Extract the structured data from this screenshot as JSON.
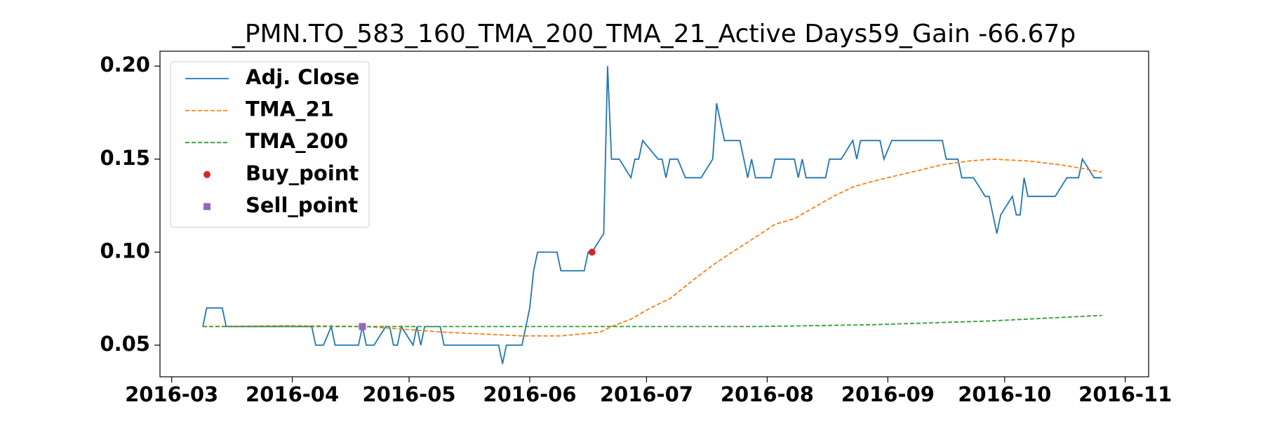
{
  "chart_data": {
    "type": "line",
    "title": "_PMN.TO_583_160_TMA_200_TMA_21_Active Days59_Gain -66.67p",
    "xlim": [
      -3,
      251
    ],
    "xticks": [
      {
        "value": 0,
        "label": "2016-03"
      },
      {
        "value": 31,
        "label": "2016-04"
      },
      {
        "value": 61,
        "label": "2016-05"
      },
      {
        "value": 92,
        "label": "2016-06"
      },
      {
        "value": 122,
        "label": "2016-07"
      },
      {
        "value": 153,
        "label": "2016-08"
      },
      {
        "value": 184,
        "label": "2016-09"
      },
      {
        "value": 214,
        "label": "2016-10"
      },
      {
        "value": 245,
        "label": "2016-11"
      }
    ],
    "ylim": [
      0.033,
      0.208
    ],
    "yticks": [
      0.05,
      {
        "value": 0.1,
        "label": "0.10"
      },
      0.15,
      {
        "value": 0.2,
        "label": "0.20"
      }
    ],
    "legend": "upper left",
    "series": [
      {
        "name": "Adj. Close",
        "color": "#1f77b4",
        "style": "solid",
        "x": [
          8,
          9,
          13,
          14,
          36,
          37,
          39,
          41,
          42,
          48,
          49,
          50,
          52,
          55,
          56,
          57,
          58,
          59,
          62,
          63,
          64,
          65,
          69,
          70,
          84,
          85,
          86,
          90,
          92,
          93,
          94,
          99,
          100,
          106,
          107,
          108,
          111,
          112,
          113,
          115,
          118,
          119,
          120,
          121,
          125,
          126,
          127,
          128,
          130,
          132,
          136,
          139,
          140,
          142,
          146,
          148,
          149,
          150,
          154,
          155,
          160,
          161,
          162,
          163,
          168,
          169,
          172,
          175,
          176,
          177,
          182,
          183,
          185,
          198,
          199,
          202,
          203,
          206,
          209,
          210,
          212,
          213,
          216,
          217,
          218,
          219,
          220,
          227,
          230,
          233,
          234,
          237,
          239
        ],
        "values": [
          0.06,
          0.07,
          0.07,
          0.06,
          0.06,
          0.05,
          0.05,
          0.06,
          0.05,
          0.05,
          0.06,
          0.05,
          0.05,
          0.06,
          0.06,
          0.05,
          0.05,
          0.06,
          0.05,
          0.06,
          0.05,
          0.06,
          0.06,
          0.05,
          0.05,
          0.04,
          0.05,
          0.05,
          0.07,
          0.09,
          0.1,
          0.1,
          0.09,
          0.09,
          0.1,
          0.1,
          0.11,
          0.2,
          0.15,
          0.15,
          0.14,
          0.15,
          0.15,
          0.16,
          0.15,
          0.15,
          0.14,
          0.15,
          0.15,
          0.14,
          0.14,
          0.15,
          0.18,
          0.16,
          0.16,
          0.14,
          0.15,
          0.14,
          0.14,
          0.15,
          0.15,
          0.14,
          0.15,
          0.14,
          0.14,
          0.15,
          0.15,
          0.16,
          0.15,
          0.16,
          0.16,
          0.15,
          0.16,
          0.16,
          0.15,
          0.15,
          0.14,
          0.14,
          0.13,
          0.13,
          0.11,
          0.12,
          0.13,
          0.12,
          0.12,
          0.14,
          0.13,
          0.13,
          0.14,
          0.14,
          0.15,
          0.14,
          0.14
        ]
      },
      {
        "name": "TMA_21",
        "color": "#ff7f0e",
        "style": "dashed",
        "x": [
          8,
          30,
          50,
          70,
          90,
          100,
          110,
          113,
          118,
          123,
          128,
          134,
          139,
          144,
          150,
          155,
          160,
          165,
          170,
          175,
          180,
          186,
          192,
          198,
          205,
          211,
          220,
          228,
          234,
          239
        ],
        "values": [
          0.06,
          0.0605,
          0.06,
          0.057,
          0.055,
          0.055,
          0.057,
          0.06,
          0.064,
          0.07,
          0.075,
          0.085,
          0.093,
          0.1,
          0.108,
          0.115,
          0.118,
          0.124,
          0.13,
          0.135,
          0.138,
          0.141,
          0.144,
          0.147,
          0.149,
          0.15,
          0.149,
          0.147,
          0.145,
          0.143
        ]
      },
      {
        "name": "TMA_200",
        "color": "#2ca02c",
        "style": "dashed",
        "x": [
          8,
          100,
          150,
          180,
          210,
          239
        ],
        "values": [
          0.06,
          0.06,
          0.06,
          0.061,
          0.063,
          0.066
        ]
      },
      {
        "name": "Buy_point",
        "color": "#d62728",
        "style": "circle",
        "x": [
          108
        ],
        "values": [
          0.1
        ]
      },
      {
        "name": "Sell_point",
        "color": "#9467bd",
        "style": "square",
        "x": [
          49
        ],
        "values": [
          0.06
        ]
      }
    ]
  }
}
